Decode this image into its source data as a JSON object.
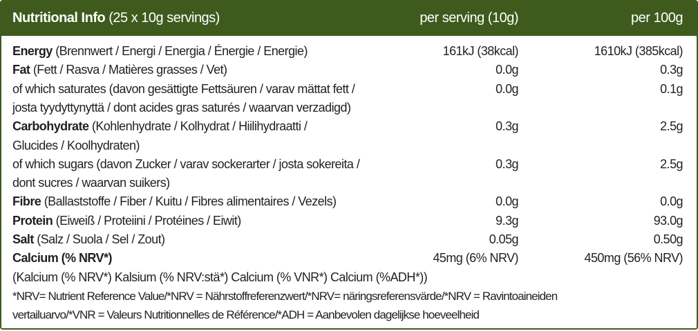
{
  "header": {
    "title": "Nutritional Info",
    "subtitle": "(25 x 10g servings)",
    "col_serving": "per serving (10g)",
    "col_100g": "per 100g"
  },
  "rows": [
    {
      "name": "Energy",
      "lines": [
        "(Brennwert / Energi / Energia / Énergie / Energie)"
      ],
      "per_serving": "161kJ (38kcal)",
      "per_100g": "1610kJ (385kcal)"
    },
    {
      "name": "Fat",
      "lines": [
        "(Fett / Rasva / Matières grasses / Vet)"
      ],
      "per_serving": "0.0g",
      "per_100g": "0.3g"
    },
    {
      "lines": [
        "of which saturates  (davon gesättigte Fettsäuren / varav mättat fett /",
        "josta tyydyttynyttä / dont acides gras saturés / waarvan verzadigd)"
      ],
      "per_serving": "0.0g",
      "per_100g": "0.1g"
    },
    {
      "name": "Carbohydrate",
      "lines": [
        "(Kohlenhydrate / Kolhydrat / Hiilihydraatti /",
        "Glucides / Koolhydraten)"
      ],
      "per_serving": "0.3g",
      "per_100g": "2.5g"
    },
    {
      "lines": [
        "of which sugars (davon Zucker / varav sockerarter / josta sokereita /",
        "dont sucres / waarvan suikers)"
      ],
      "per_serving": "0.3g",
      "per_100g": "2.5g"
    },
    {
      "name": "Fibre",
      "lines": [
        "(Ballaststoffe / Fiber / Kuitu / Fibres alimentaires / Vezels)"
      ],
      "per_serving": "0.0g",
      "per_100g": "0.0g"
    },
    {
      "name": "Protein",
      "lines": [
        "(Eiweiß / Proteiini / Protéines / Eiwit)"
      ],
      "per_serving": "9.3g",
      "per_100g": "93.0g"
    },
    {
      "name": "Salt",
      "lines": [
        " (Salz / Suola / Sel / Zout)"
      ],
      "per_serving": "0.05g",
      "per_100g": "0.50g"
    },
    {
      "name": "Calcium (% NRV*)",
      "translations": "(Kalcium (% NRV*) Kalsium (% NRV:stä*) Calcium (% VNR*) Calcium (%ADH*))",
      "per_serving": "45mg (6% NRV)",
      "per_100g": "450mg (56% NRV)"
    }
  ],
  "footnote": [
    "*NRV= Nutrient Reference Value/*NRV = Nährstoffreferenzwert/*NRV= näringsreferensvärde/*NRV = Ravintoaineiden",
    "vertailuarvo/*VNR = Valeurs Nutritionnelles de Référence/*ADH = Aanbevolen dagelijkse hoeveelheid"
  ]
}
